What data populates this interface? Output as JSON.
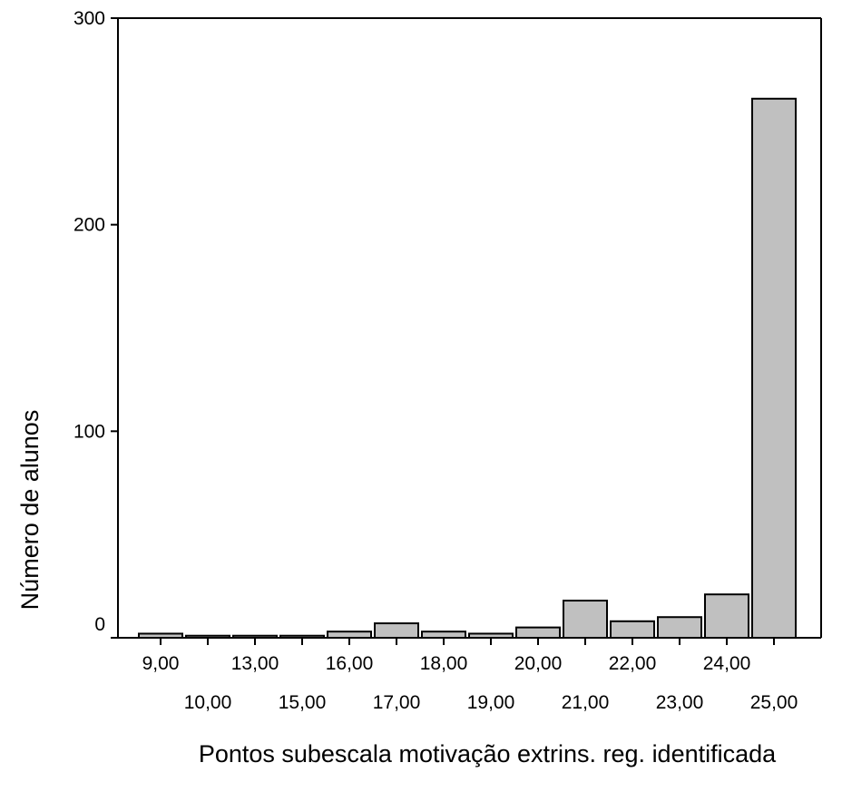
{
  "chart_data": {
    "type": "bar",
    "title": "",
    "xlabel": "Pontos subescala motivação extrins. reg. identificada",
    "ylabel": "Número de alunos",
    "categories": [
      "9,00",
      "10,00",
      "13,00",
      "15,00",
      "16,00",
      "17,00",
      "18,00",
      "19,00",
      "20,00",
      "21,00",
      "22,00",
      "23,00",
      "24,00",
      "25,00"
    ],
    "values": [
      2,
      1,
      1,
      1,
      3,
      7,
      3,
      2,
      5,
      18,
      8,
      10,
      21,
      261
    ],
    "ylim": [
      0,
      300
    ],
    "yticks": [
      "0",
      "100",
      "200",
      "300"
    ],
    "ytick_values": [
      0,
      100,
      200,
      300
    ],
    "grid": false,
    "bar_color": "#c0c0c0",
    "bar_edge_color": "#000000"
  }
}
